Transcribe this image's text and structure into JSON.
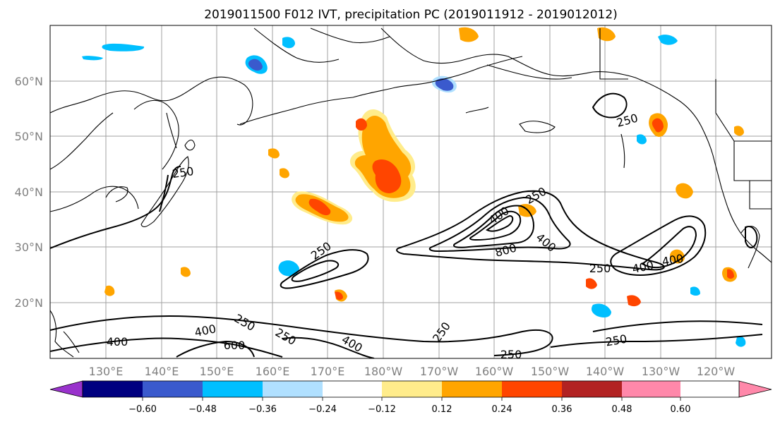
{
  "title": "2019011500 F012 IVT, precipitation PC (2019011912 - 2019012012)",
  "lat_labels": [
    "60°N",
    "50°N",
    "40°N",
    "30°N",
    "20°N"
  ],
  "lon_labels": [
    "130°E",
    "140°E",
    "150°E",
    "160°E",
    "170°E",
    "180°W",
    "170°W",
    "160°W",
    "150°W",
    "140°W",
    "130°W",
    "120°W"
  ],
  "contour_labels": [
    "250",
    "250",
    "400",
    "400",
    "800",
    "250",
    "400",
    "400",
    "250",
    "250",
    "400",
    "250",
    "600",
    "400",
    "250",
    "250",
    "250",
    "400",
    "250"
  ],
  "colorbar": {
    "colors": [
      "#9932cc",
      "#000080",
      "#3a5acd",
      "#00bfff",
      "#b0e0ff",
      "#ffffff",
      "#ffec8b",
      "#ffa500",
      "#ff4500",
      "#b22222",
      "#ff88aa"
    ],
    "tick_labels": [
      "−0.60",
      "−0.48",
      "−0.36",
      "−0.24",
      "−0.12",
      "0.12",
      "0.24",
      "0.36",
      "0.48",
      "0.60"
    ]
  }
}
